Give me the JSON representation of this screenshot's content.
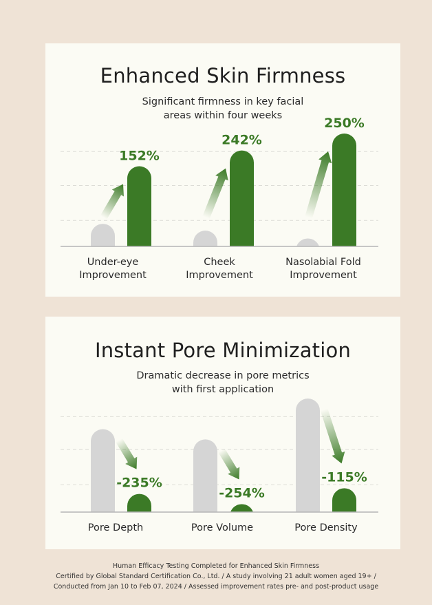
{
  "colors": {
    "background": "#efe3d6",
    "card": "#fbfbf4",
    "green": "#3b7a26",
    "gray": "#d5d5d5",
    "axis": "#b5b5b5"
  },
  "chart_data": [
    {
      "type": "bar",
      "title": "Enhanced Skin Firmness",
      "subtitle": [
        "Significant firmness in key facial",
        "areas within four weeks"
      ],
      "categories": [
        [
          "Under-eye",
          "Improvement"
        ],
        [
          "Cheek",
          "Improvement"
        ],
        [
          "Nasolabial Fold",
          "Improvement"
        ]
      ],
      "series": [
        {
          "values": [
            20,
            14,
            7
          ],
          "color": "#d5d5d5"
        },
        {
          "values": [
            71,
            85,
            100
          ],
          "color": "#3b7a26"
        }
      ],
      "data_labels": [
        "152%",
        "242%",
        "250%"
      ],
      "arrow_direction": "up",
      "ylim": [
        0,
        100
      ],
      "gridlines": [
        23,
        54,
        84
      ],
      "grid": true
    },
    {
      "type": "bar",
      "title": "Instant Pore Minimization",
      "subtitle": [
        "Dramatic decrease in pore metrics",
        "with first application"
      ],
      "categories": [
        [
          "Pore Depth"
        ],
        [
          "Pore Volume"
        ],
        [
          "Pore Density"
        ]
      ],
      "series": [
        {
          "values": [
            73,
            64,
            100
          ],
          "color": "#d5d5d5"
        },
        {
          "values": [
            16,
            7,
            21
          ],
          "color": "#3b7a26"
        }
      ],
      "data_labels": [
        "-235%",
        "-254%",
        "-115%"
      ],
      "arrow_direction": "down",
      "ylim": [
        0,
        100
      ],
      "gridlines": [
        24,
        55,
        84
      ],
      "grid": true
    }
  ],
  "footer": [
    "Human Efficacy Testing Completed for Enhanced Skin Firmness",
    "Certified by Global Standard Certification Co., Ltd. / A study involving 21 adult women aged 19+ /",
    "Conducted from Jan 10 to Feb 07, 2024 / Assessed improvement rates pre- and post-product usage"
  ]
}
